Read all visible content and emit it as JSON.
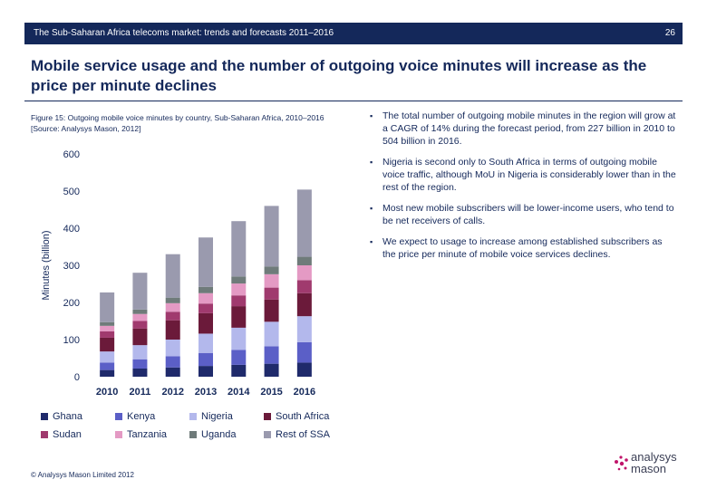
{
  "header": {
    "title": "The Sub-Saharan Africa telecoms market: trends and forecasts 2011–2016",
    "page_number": "26"
  },
  "heading": "Mobile service usage and the number of outgoing voice minutes will increase as the price per minute declines",
  "figure_caption": "Figure 15: Outgoing mobile voice minutes by country, Sub-Saharan Africa, 2010–2016 [Source: Analysys Mason, 2012]",
  "bullets": [
    "The total number of outgoing mobile minutes in the region will grow at a CAGR of 14% during the forecast period, from 227 billion in 2010 to 504 billion in 2016.",
    "Nigeria is second only to South Africa in terms of outgoing mobile voice traffic, although MoU in Nigeria is considerably lower than in the rest of the region.",
    "Most new mobile subscribers will be lower-income users, who tend to be net receivers of calls.",
    "We expect to usage to increase among established subscribers as the price per minute of mobile voice services declines."
  ],
  "footer": "© Analysys Mason Limited 2012",
  "logo": {
    "line1": "analysys",
    "line2": "mason"
  },
  "chart_data": {
    "type": "bar",
    "stacked": true,
    "categories": [
      "2010",
      "2011",
      "2012",
      "2013",
      "2014",
      "2015",
      "2016"
    ],
    "ylabel": "Minutes (billion)",
    "xlabel": "",
    "ylim": [
      0,
      600
    ],
    "yticks": [
      0,
      100,
      200,
      300,
      400,
      500,
      600
    ],
    "grid": false,
    "legend_position": "bottom",
    "series": [
      {
        "name": "Ghana",
        "color": "#1f2a6b",
        "values": [
          18,
          22,
          25,
          29,
          32,
          35,
          38
        ]
      },
      {
        "name": "Kenya",
        "color": "#5b5fc7",
        "values": [
          20,
          25,
          30,
          35,
          40,
          47,
          55
        ]
      },
      {
        "name": "Nigeria",
        "color": "#b3b8ec",
        "values": [
          30,
          38,
          45,
          52,
          60,
          66,
          70
        ]
      },
      {
        "name": "South Africa",
        "color": "#6b1a3a",
        "values": [
          37,
          45,
          52,
          55,
          58,
          60,
          62
        ]
      },
      {
        "name": "Sudan",
        "color": "#a03a6e",
        "values": [
          17,
          20,
          23,
          26,
          29,
          32,
          35
        ]
      },
      {
        "name": "Tanzania",
        "color": "#e49ac4",
        "values": [
          15,
          19,
          23,
          28,
          32,
          36,
          40
        ]
      },
      {
        "name": "Uganda",
        "color": "#6f7b7a",
        "values": [
          10,
          12,
          15,
          17,
          19,
          21,
          23
        ]
      },
      {
        "name": "Rest of SSA",
        "color": "#9a9aae",
        "values": [
          80,
          99,
          117,
          133,
          149,
          163,
          181
        ]
      }
    ]
  }
}
